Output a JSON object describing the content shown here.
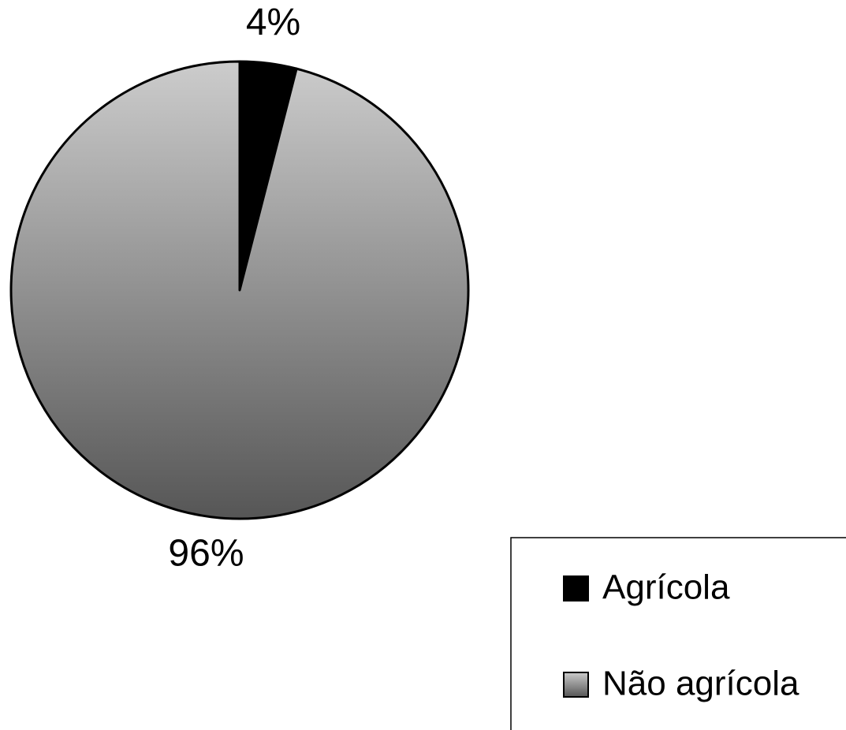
{
  "chart_data": {
    "type": "pie",
    "categories": [
      "Agrícola",
      "Não agrícola"
    ],
    "values": [
      4,
      96
    ],
    "value_labels": [
      "4%",
      "96%"
    ],
    "colors": [
      "#000000",
      "#cccccc"
    ],
    "legend": "bottom-right"
  }
}
